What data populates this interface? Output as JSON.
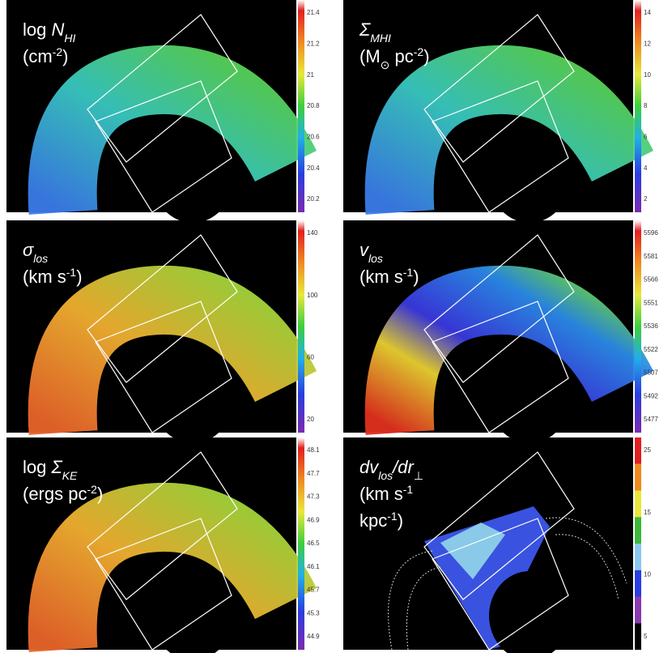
{
  "panels": [
    {
      "title_lines": [
        [
          {
            "text": "log ",
            "style": "normal"
          },
          {
            "text": "N",
            "style": "italic"
          },
          {
            "text": "HI",
            "style": "sub-italic"
          }
        ],
        [
          {
            "text": "(cm",
            "style": "normal"
          },
          {
            "text": "-2",
            "style": "sup"
          },
          {
            "text": ")",
            "style": "normal"
          }
        ]
      ],
      "colorbar_ticks": [
        "21.4",
        "21.2",
        "21",
        "20.8",
        "20.6",
        "20.4",
        "20.2"
      ],
      "colorbar": "continuous"
    },
    {
      "title_lines": [
        [
          {
            "text": "Σ",
            "style": "italic"
          },
          {
            "text": "MHI",
            "style": "sub-italic"
          }
        ],
        [
          {
            "text": "(M",
            "style": "normal"
          },
          {
            "text": "⊙",
            "style": "sub"
          },
          {
            "text": " pc",
            "style": "normal"
          },
          {
            "text": "-2",
            "style": "sup"
          },
          {
            "text": ")",
            "style": "normal"
          }
        ]
      ],
      "colorbar_ticks": [
        "14",
        "12",
        "10",
        "8",
        "6",
        "4",
        "2"
      ],
      "colorbar": "continuous"
    },
    {
      "title_lines": [
        [
          {
            "text": "σ",
            "style": "italic"
          },
          {
            "text": "los",
            "style": "sub-italic"
          }
        ],
        [
          {
            "text": "(km s",
            "style": "normal"
          },
          {
            "text": "-1",
            "style": "sup"
          },
          {
            "text": ")",
            "style": "normal"
          }
        ]
      ],
      "colorbar_ticks": [
        "140",
        "100",
        "60",
        "20"
      ],
      "colorbar": "continuous"
    },
    {
      "title_lines": [
        [
          {
            "text": "v",
            "style": "italic"
          },
          {
            "text": "los",
            "style": "sub-italic"
          }
        ],
        [
          {
            "text": "(km s",
            "style": "normal"
          },
          {
            "text": "-1",
            "style": "sup"
          },
          {
            "text": ")",
            "style": "normal"
          }
        ]
      ],
      "colorbar_ticks": [
        "5596",
        "5581",
        "5566",
        "5551",
        "5536",
        "5522",
        "5507",
        "5492",
        "5477"
      ],
      "colorbar": "continuous"
    },
    {
      "title_lines": [
        [
          {
            "text": "log ",
            "style": "normal"
          },
          {
            "text": "Σ",
            "style": "italic"
          },
          {
            "text": "KE",
            "style": "sub-italic"
          }
        ],
        [
          {
            "text": "(ergs pc",
            "style": "normal"
          },
          {
            "text": "-2",
            "style": "sup"
          },
          {
            "text": ")",
            "style": "normal"
          }
        ]
      ],
      "colorbar_ticks": [
        "48.1",
        "47.7",
        "47.3",
        "46.9",
        "46.5",
        "46.1",
        "45.7",
        "45.3",
        "44.9"
      ],
      "colorbar": "continuous"
    },
    {
      "title_lines": [
        [
          {
            "text": "dv",
            "style": "italic"
          },
          {
            "text": "los",
            "style": "sub-italic"
          },
          {
            "text": "/dr",
            "style": "italic"
          },
          {
            "text": "⊥",
            "style": "sub"
          }
        ],
        [
          {
            "text": "(km s",
            "style": "normal"
          },
          {
            "text": "-1",
            "style": "sup"
          }
        ],
        [
          {
            "text": "kpc",
            "style": "normal"
          },
          {
            "text": "-1",
            "style": "sup"
          },
          {
            "text": ")",
            "style": "normal"
          }
        ]
      ],
      "colorbar_ticks": [
        "25",
        "15",
        "10",
        "5"
      ],
      "colorbar": "discrete"
    }
  ]
}
